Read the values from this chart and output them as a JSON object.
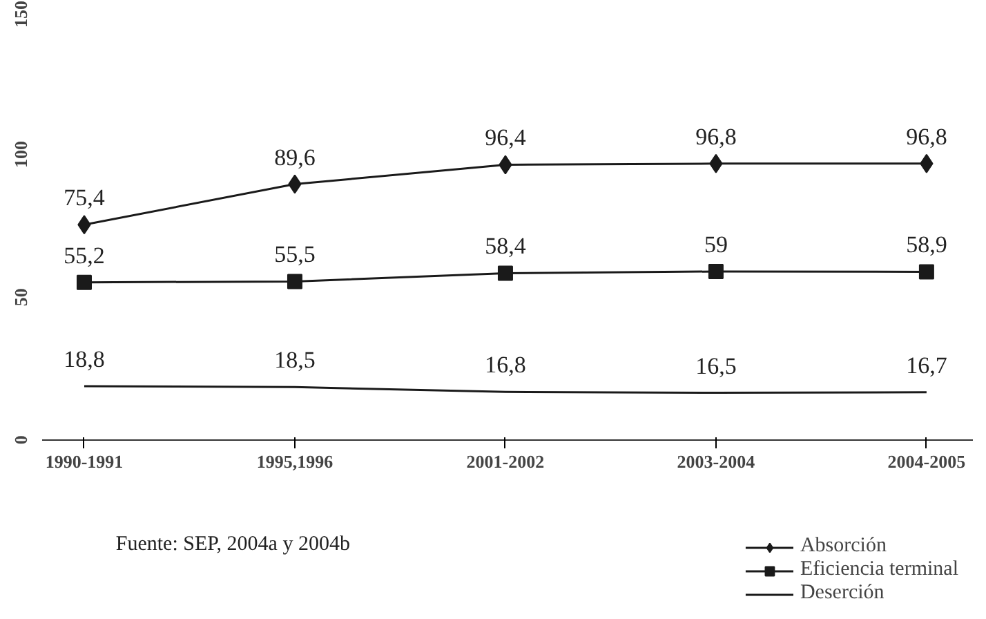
{
  "chart_data": {
    "type": "line",
    "categories": [
      "1990-1991",
      "1995,1996",
      "2001-2002",
      "2003-2004",
      "2004-2005"
    ],
    "series": [
      {
        "name": "Absorción",
        "color": "#1a1a1a",
        "marker": "diamond",
        "values": [
          75.4,
          89.6,
          96.4,
          96.8,
          96.8
        ],
        "value_labels": [
          "75,4",
          "89,6",
          "96,4",
          "96,8",
          "96,8"
        ]
      },
      {
        "name": "Eficiencia terminal",
        "color": "#1a1a1a",
        "marker": "square",
        "values": [
          55.2,
          55.5,
          58.4,
          59,
          58.9
        ],
        "value_labels": [
          "55,2",
          "55,5",
          "58,4",
          "59",
          "58,9"
        ]
      },
      {
        "name": "Deserción",
        "color": "#1a1a1a",
        "marker": "none",
        "values": [
          18.8,
          18.5,
          16.8,
          16.5,
          16.7
        ],
        "value_labels": [
          "18,8",
          "18,5",
          "16,8",
          "16,5",
          "16,7"
        ]
      }
    ],
    "ylim": [
      0,
      150
    ],
    "yticks": [
      0,
      50,
      100,
      150
    ],
    "grid": false,
    "legend": "bottom right",
    "annotations": [
      "Fuente: SEP, 2004a y 2004b"
    ]
  }
}
